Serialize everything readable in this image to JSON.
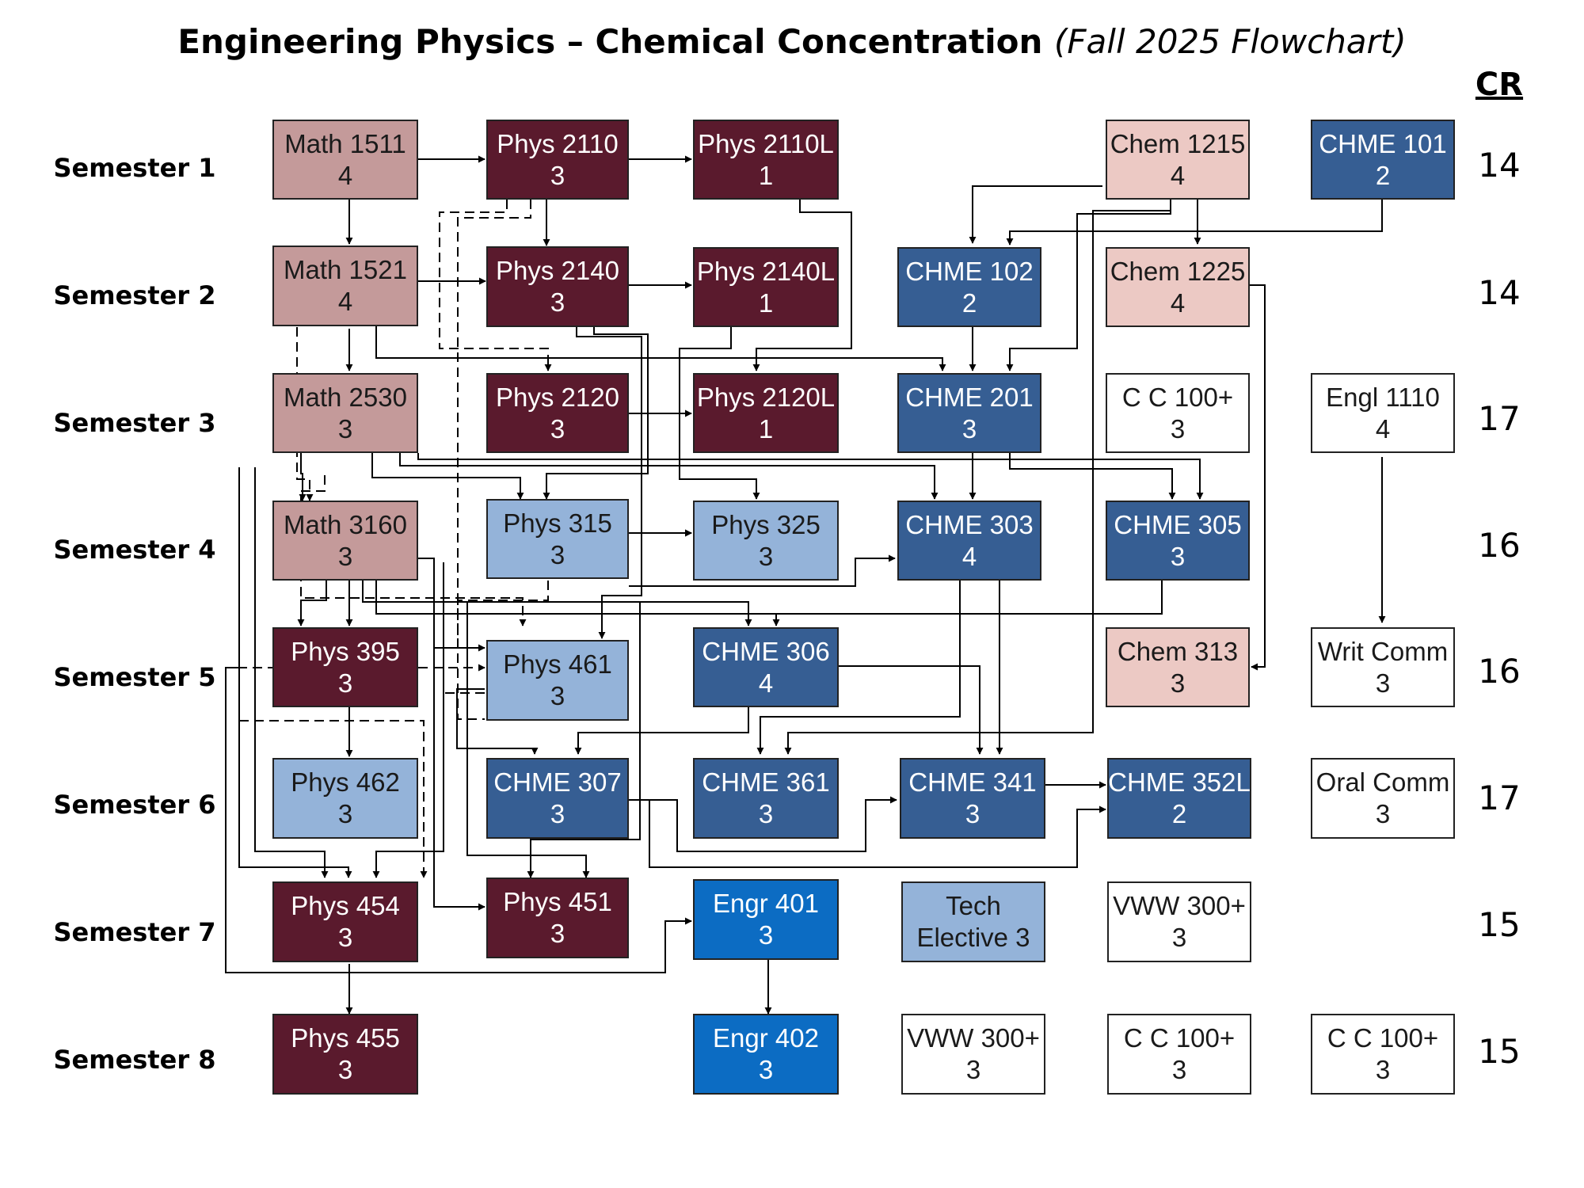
{
  "title": {
    "main": "Engineering Physics – Chemical Concentration",
    "sub": "(Fall 2025 Flowchart)"
  },
  "cr_header": "CR",
  "semesters": [
    {
      "label": "Semester 1",
      "cr": "14"
    },
    {
      "label": "Semester 2",
      "cr": "14"
    },
    {
      "label": "Semester 3",
      "cr": "17"
    },
    {
      "label": "Semester 4",
      "cr": "16"
    },
    {
      "label": "Semester 5",
      "cr": "16"
    },
    {
      "label": "Semester 6",
      "cr": "17"
    },
    {
      "label": "Semester 7",
      "cr": "15"
    },
    {
      "label": "Semester 8",
      "cr": "15"
    }
  ],
  "courses": {
    "math1511": {
      "name": "Math 1511",
      "credits": "4"
    },
    "phys2110": {
      "name": "Phys 2110",
      "credits": "3"
    },
    "phys2110l": {
      "name": "Phys 2110L",
      "credits": "1"
    },
    "chem1215": {
      "name": "Chem 1215",
      "credits": "4"
    },
    "chme101": {
      "name": "CHME 101",
      "credits": "2"
    },
    "math1521": {
      "name": "Math 1521",
      "credits": "4"
    },
    "phys2140": {
      "name": "Phys 2140",
      "credits": "3"
    },
    "phys2140l": {
      "name": "Phys 2140L",
      "credits": "1"
    },
    "chme102": {
      "name": "CHME 102",
      "credits": "2"
    },
    "chem1225": {
      "name": "Chem 1225",
      "credits": "4"
    },
    "math2530": {
      "name": "Math 2530",
      "credits": "3"
    },
    "phys2120": {
      "name": "Phys 2120",
      "credits": "3"
    },
    "phys2120l": {
      "name": "Phys 2120L",
      "credits": "1"
    },
    "chme201": {
      "name": "CHME 201",
      "credits": "3"
    },
    "cc100a": {
      "name": "C C 100+",
      "credits": "3"
    },
    "engl1110": {
      "name": "Engl 1110",
      "credits": "4"
    },
    "math3160": {
      "name": "Math 3160",
      "credits": "3"
    },
    "phys315": {
      "name": "Phys 315",
      "credits": "3"
    },
    "phys325": {
      "name": "Phys 325",
      "credits": "3"
    },
    "chme303": {
      "name": "CHME 303",
      "credits": "4"
    },
    "chme305": {
      "name": "CHME 305",
      "credits": "3"
    },
    "phys395": {
      "name": "Phys 395",
      "credits": "3"
    },
    "phys461": {
      "name": "Phys 461",
      "credits": "3"
    },
    "chme306": {
      "name": "CHME 306",
      "credits": "4"
    },
    "chem313": {
      "name": "Chem 313",
      "credits": "3"
    },
    "writcomm": {
      "name": "Writ Comm",
      "credits": "3"
    },
    "phys462": {
      "name": "Phys 462",
      "credits": "3"
    },
    "chme307": {
      "name": "CHME 307",
      "credits": "3"
    },
    "chme361": {
      "name": "CHME 361",
      "credits": "3"
    },
    "chme341": {
      "name": "CHME 341",
      "credits": "3"
    },
    "chme352l": {
      "name": "CHME 352L",
      "credits": "2"
    },
    "oralcomm": {
      "name": "Oral Comm",
      "credits": "3"
    },
    "phys454": {
      "name": "Phys 454",
      "credits": "3"
    },
    "phys451": {
      "name": "Phys 451",
      "credits": "3"
    },
    "engr401": {
      "name": "Engr 401",
      "credits": "3"
    },
    "techelective": {
      "name": "Tech",
      "credits": "Elective 3"
    },
    "vww300a": {
      "name": "VWW 300+",
      "credits": "3"
    },
    "phys455": {
      "name": "Phys 455",
      "credits": "3"
    },
    "engr402": {
      "name": "Engr 402",
      "credits": "3"
    },
    "vww300b": {
      "name": "VWW 300+",
      "credits": "3"
    },
    "cc100b": {
      "name": "C C 100+",
      "credits": "3"
    },
    "cc100c": {
      "name": "C C 100+",
      "credits": "3"
    }
  },
  "colors": {
    "math": "#c49a9a",
    "physics_core": "#5a1a2d",
    "chemistry": "#ecc9c4",
    "chme": "#365e93",
    "physics_elective": "#94b3d9",
    "engineering": "#0c6cc3",
    "general": "#ffffff"
  }
}
